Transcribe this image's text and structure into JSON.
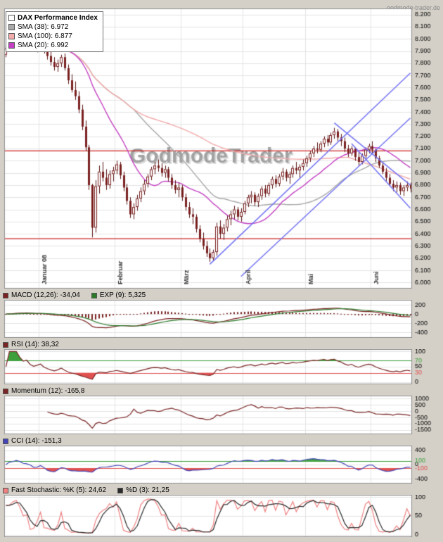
{
  "page": {
    "site_label": "godmode-trader.de",
    "watermark_text": "GodmodeTrader",
    "bg": "#d4d0c8"
  },
  "chart_data": [
    {
      "type": "candlestick",
      "title": "DAX Performance Index",
      "legend": [
        {
          "label": "DAX Performance Index",
          "color": "#ffffff",
          "bold": true
        },
        {
          "label": "SMA (38): 6.972",
          "color": "#a8a8a8",
          "period": 38
        },
        {
          "label": "SMA (100): 6.877",
          "color": "#f2aaaa",
          "period": 100
        },
        {
          "label": "SMA (20): 6.992",
          "color": "#c33fc3",
          "period": 20
        }
      ],
      "candle_colors": {
        "up_fill": "#ffffff",
        "down_fill": "#7a2020",
        "border": "#7a2020",
        "wick": "#5a1515"
      },
      "y_range": [
        5950,
        8250
      ],
      "y_ticks": [
        8200,
        8100,
        8000,
        7900,
        7800,
        7700,
        7600,
        7500,
        7400,
        7300,
        7200,
        7100,
        7000,
        6900,
        6800,
        6700,
        6600,
        6500,
        6400,
        6300,
        6200,
        6100,
        6000
      ],
      "months": [
        {
          "label": "Januar 08",
          "index": 10
        },
        {
          "label": "Februar",
          "index": 32
        },
        {
          "label": "März",
          "index": 51
        },
        {
          "label": "April",
          "index": 69
        },
        {
          "label": "Mai",
          "index": 87
        },
        {
          "label": "Juni",
          "index": 106
        }
      ],
      "hlines": [
        {
          "value": 7080,
          "color": "#cc2222"
        },
        {
          "value": 6360,
          "color": "#cc2222"
        }
      ],
      "trendlines": [
        {
          "x1": 59,
          "y1": 6150,
          "x2": 117,
          "y2": 7720,
          "color": "#7373f5"
        },
        {
          "x1": 68,
          "y1": 6050,
          "x2": 117,
          "y2": 7350,
          "color": "#7373f5"
        },
        {
          "x1": 95,
          "y1": 7310,
          "x2": 117,
          "y2": 6800,
          "color": "#7373f5"
        },
        {
          "x1": 100,
          "y1": 7140,
          "x2": 117,
          "y2": 6610,
          "color": "#7373f5"
        }
      ],
      "candles": [
        [
          7870,
          7940,
          7850,
          7920
        ],
        [
          7920,
          7990,
          7900,
          7960
        ],
        [
          7960,
          8010,
          7930,
          7990
        ],
        [
          7990,
          8070,
          7970,
          8050
        ],
        [
          8050,
          8080,
          8000,
          8020
        ],
        [
          8020,
          8060,
          7960,
          7990
        ],
        [
          7990,
          8030,
          7950,
          8010
        ],
        [
          8010,
          8040,
          7940,
          7960
        ],
        [
          7960,
          8000,
          7900,
          7930
        ],
        [
          7930,
          7980,
          7890,
          7950
        ],
        [
          7950,
          8000,
          7900,
          7980
        ],
        [
          7980,
          8000,
          7880,
          7910
        ],
        [
          7910,
          7930,
          7830,
          7860
        ],
        [
          7860,
          7900,
          7780,
          7810
        ],
        [
          7810,
          7850,
          7740,
          7770
        ],
        [
          7770,
          7830,
          7730,
          7800
        ],
        [
          7800,
          7870,
          7770,
          7850
        ],
        [
          7850,
          7880,
          7740,
          7760
        ],
        [
          7760,
          7790,
          7630,
          7660
        ],
        [
          7660,
          7710,
          7560,
          7580
        ],
        [
          7580,
          7650,
          7500,
          7530
        ],
        [
          7530,
          7570,
          7390,
          7420
        ],
        [
          7420,
          7460,
          7250,
          7280
        ],
        [
          7280,
          7330,
          7080,
          7110
        ],
        [
          7110,
          7130,
          6760,
          6800
        ],
        [
          6800,
          6810,
          6370,
          6450
        ],
        [
          6450,
          6840,
          6410,
          6790
        ],
        [
          6790,
          6960,
          6730,
          6910
        ],
        [
          6910,
          6990,
          6830,
          6860
        ],
        [
          6860,
          6930,
          6760,
          6800
        ],
        [
          6800,
          6920,
          6770,
          6890
        ],
        [
          6890,
          6950,
          6830,
          6920
        ],
        [
          6920,
          7000,
          6890,
          6970
        ],
        [
          6970,
          6990,
          6850,
          6880
        ],
        [
          6880,
          6910,
          6750,
          6780
        ],
        [
          6780,
          6810,
          6640,
          6670
        ],
        [
          6670,
          6700,
          6530,
          6560
        ],
        [
          6560,
          6650,
          6520,
          6620
        ],
        [
          6620,
          6720,
          6590,
          6690
        ],
        [
          6690,
          6780,
          6660,
          6750
        ],
        [
          6750,
          6840,
          6720,
          6810
        ],
        [
          6810,
          6890,
          6780,
          6870
        ],
        [
          6870,
          6950,
          6840,
          6930
        ],
        [
          6930,
          6990,
          6890,
          6960
        ],
        [
          6960,
          7010,
          6910,
          6940
        ],
        [
          6940,
          6980,
          6870,
          6900
        ],
        [
          6900,
          6960,
          6860,
          6930
        ],
        [
          6930,
          6950,
          6830,
          6860
        ],
        [
          6860,
          6890,
          6770,
          6800
        ],
        [
          6800,
          6840,
          6730,
          6760
        ],
        [
          6760,
          6820,
          6700,
          6780
        ],
        [
          6780,
          6800,
          6670,
          6700
        ],
        [
          6700,
          6730,
          6590,
          6620
        ],
        [
          6620,
          6660,
          6530,
          6560
        ],
        [
          6560,
          6610,
          6480,
          6540
        ],
        [
          6540,
          6560,
          6410,
          6440
        ],
        [
          6440,
          6470,
          6330,
          6360
        ],
        [
          6360,
          6410,
          6270,
          6300
        ],
        [
          6300,
          6340,
          6210,
          6240
        ],
        [
          6240,
          6280,
          6170,
          6200
        ],
        [
          6200,
          6270,
          6180,
          6250
        ],
        [
          6250,
          6490,
          6220,
          6460
        ],
        [
          6460,
          6510,
          6360,
          6400
        ],
        [
          6400,
          6480,
          6350,
          6450
        ],
        [
          6450,
          6550,
          6420,
          6520
        ],
        [
          6520,
          6590,
          6470,
          6560
        ],
        [
          6560,
          6630,
          6520,
          6600
        ],
        [
          6600,
          6620,
          6510,
          6540
        ],
        [
          6540,
          6610,
          6500,
          6580
        ],
        [
          6580,
          6670,
          6560,
          6650
        ],
        [
          6650,
          6720,
          6620,
          6700
        ],
        [
          6700,
          6750,
          6650,
          6720
        ],
        [
          6720,
          6740,
          6630,
          6660
        ],
        [
          6660,
          6730,
          6620,
          6710
        ],
        [
          6710,
          6790,
          6680,
          6770
        ],
        [
          6770,
          6800,
          6700,
          6730
        ],
        [
          6730,
          6820,
          6710,
          6800
        ],
        [
          6800,
          6870,
          6770,
          6850
        ],
        [
          6850,
          6880,
          6780,
          6810
        ],
        [
          6810,
          6890,
          6790,
          6870
        ],
        [
          6870,
          6940,
          6840,
          6910
        ],
        [
          6910,
          6930,
          6830,
          6860
        ],
        [
          6860,
          6910,
          6810,
          6890
        ],
        [
          6890,
          6960,
          6860,
          6940
        ],
        [
          6940,
          6990,
          6890,
          6920
        ],
        [
          6920,
          6970,
          6860,
          6950
        ],
        [
          6950,
          7010,
          6920,
          6980
        ],
        [
          6980,
          7040,
          6950,
          7020
        ],
        [
          7020,
          7080,
          6990,
          7060
        ],
        [
          7060,
          7120,
          7030,
          7100
        ],
        [
          7100,
          7150,
          7060,
          7090
        ],
        [
          7090,
          7160,
          7070,
          7140
        ],
        [
          7140,
          7200,
          7110,
          7180
        ],
        [
          7180,
          7210,
          7120,
          7150
        ],
        [
          7150,
          7230,
          7130,
          7210
        ],
        [
          7210,
          7270,
          7180,
          7240
        ],
        [
          7240,
          7260,
          7160,
          7190
        ],
        [
          7190,
          7220,
          7120,
          7160
        ],
        [
          7160,
          7190,
          7070,
          7100
        ],
        [
          7100,
          7130,
          7030,
          7060
        ],
        [
          7060,
          7120,
          7040,
          7100
        ],
        [
          7100,
          7110,
          7000,
          7030
        ],
        [
          7030,
          7070,
          6960,
          6990
        ],
        [
          6990,
          7060,
          6970,
          7040
        ],
        [
          7040,
          7110,
          7020,
          7090
        ],
        [
          7090,
          7140,
          7060,
          7120
        ],
        [
          7120,
          7160,
          7060,
          7090
        ],
        [
          7090,
          7100,
          6990,
          7020
        ],
        [
          7020,
          7040,
          6940,
          6960
        ],
        [
          6960,
          6990,
          6890,
          6910
        ],
        [
          6910,
          6940,
          6830,
          6860
        ],
        [
          6860,
          6890,
          6790,
          6810
        ],
        [
          6810,
          6840,
          6750,
          6780
        ],
        [
          6780,
          6830,
          6740,
          6800
        ],
        [
          6800,
          6820,
          6720,
          6750
        ],
        [
          6750,
          6800,
          6710,
          6780
        ],
        [
          6780,
          6830,
          6750,
          6800
        ],
        [
          6800,
          6820,
          6740,
          6770
        ]
      ]
    },
    {
      "type": "macd",
      "legend": [
        {
          "label": "MACD (12,26): -34,04",
          "color": "#7a2222"
        },
        {
          "label": "EXP (9): 5,325",
          "color": "#2a7a2a"
        }
      ],
      "params": {
        "fast": 12,
        "slow": 26,
        "signal": 9
      },
      "y_ticks": [
        200,
        0,
        -200,
        -400
      ],
      "y_range": [
        -520,
        310
      ]
    },
    {
      "type": "rsi",
      "legend": [
        {
          "label": "RSI (14): 38,32",
          "color": "#7a2525"
        }
      ],
      "params": {
        "period": 14
      },
      "y_ticks": [
        100,
        50,
        0
      ],
      "levels": [
        {
          "value": 70,
          "color": "#3da03d",
          "fill": "above"
        },
        {
          "value": 30,
          "color": "#e05050",
          "fill": "below"
        }
      ],
      "y_range": [
        -8,
        108
      ]
    },
    {
      "type": "momentum",
      "legend": [
        {
          "label": "Momentum (12): -165,8",
          "color": "#7a2525"
        }
      ],
      "params": {
        "period": 12
      },
      "y_ticks": [
        1000,
        500,
        0,
        -500,
        -1000,
        -1500
      ],
      "y_range": [
        -1850,
        1250
      ]
    },
    {
      "type": "cci",
      "legend": [
        {
          "label": "CCI (14): -151,3",
          "color": "#4545b8"
        }
      ],
      "params": {
        "period": 14
      },
      "y_ticks": [
        400,
        0,
        -400
      ],
      "levels": [
        {
          "value": 100,
          "color": "#3da03d",
          "fill": "above"
        },
        {
          "value": -100,
          "color": "#e05050",
          "fill": "below"
        }
      ],
      "y_range": [
        -530,
        530
      ]
    },
    {
      "type": "stochastic",
      "legend": [
        {
          "label": "Fast Stochastic: %K (5): 24,62",
          "color": "#f08080"
        },
        {
          "label": "%D (3): 21,25",
          "color": "#2a2a2a"
        }
      ],
      "params": {
        "k": 5,
        "d": 3
      },
      "y_ticks": [
        100,
        50,
        0
      ],
      "y_range": [
        -6,
        106
      ]
    }
  ]
}
